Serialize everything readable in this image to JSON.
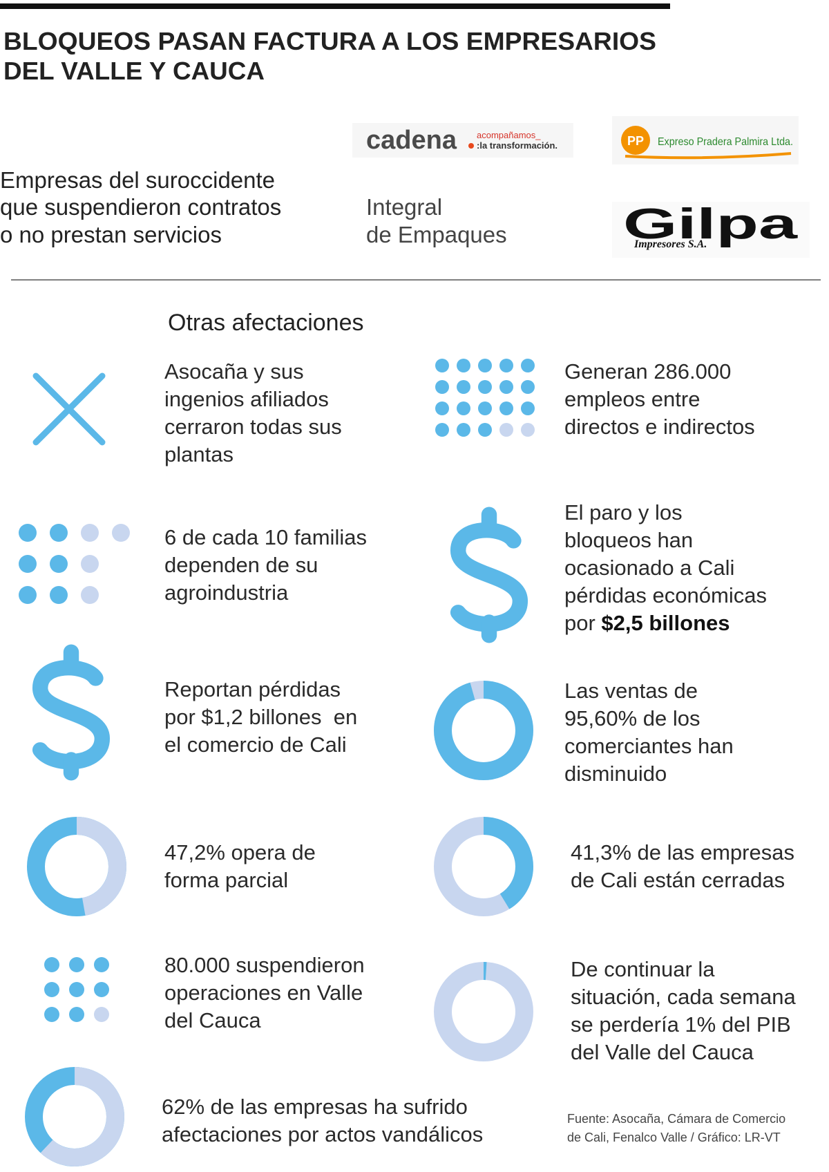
{
  "header": {
    "title_lines": [
      "BLOQUEOS PASAN FACTURA A LOS EMPRESARIOS",
      "DEL VALLE Y CAUCA"
    ]
  },
  "companies": {
    "intro_lines": [
      "Empresas del suroccidente",
      "que suspendieron contratos",
      "o no prestan servicios"
    ],
    "cadena": {
      "name": "cadena",
      "tagline_lines": [
        "acompañamos_",
        ":la transformación."
      ]
    },
    "expreso": {
      "badge": "PP",
      "name": "Expreso Pradera Palmira Ltda."
    },
    "integral_lines": [
      "Integral",
      "de Empaques"
    ],
    "gilpa": {
      "name": "Gilpa",
      "sub": "Impresores S.A."
    }
  },
  "section_title": "Otras afectaciones",
  "colors": {
    "main": "#5bb8e8",
    "light": "#c8d6ef"
  },
  "items": [
    {
      "icon": "x",
      "lines": [
        "Asocaña y sus",
        "ingenios afiliados",
        "cerraron todas sus",
        "plantas"
      ]
    },
    {
      "icon": "dots",
      "dots_filled": 18,
      "dots_total": 20,
      "lines": [
        "Generan 286.000",
        "empleos entre",
        "directos e indirectos"
      ]
    },
    {
      "icon": "dots",
      "dots_filled": 6,
      "dots_total": 10,
      "lines": [
        "6 de cada 10 familias",
        "dependen de su",
        "agroindustria"
      ]
    },
    {
      "icon": "dollar",
      "lines": [
        "El paro y los",
        "bloqueos han",
        "ocasionado a Cali",
        "pérdidas económicas"
      ],
      "emphasis_line": {
        "text": "por ",
        "bold": "$2,5 billones"
      }
    },
    {
      "icon": "dollar",
      "lines": [
        "Reportan pérdidas",
        "por $1,2 billones  en",
        "el comercio de Cali"
      ]
    },
    {
      "icon": "donut",
      "value": 95.6,
      "value_color": "#5bb8e8",
      "lines": [
        "Las ventas de",
        "95,60% de los",
        "comerciantes han",
        "disminuido"
      ]
    },
    {
      "icon": "donut",
      "value": 47.2,
      "value_color": "#c8d6ef",
      "lines": [
        "47,2% opera de",
        "forma parcial"
      ]
    },
    {
      "icon": "donut",
      "value": 41.3,
      "value_color": "#5bb8e8",
      "lines": [
        "41,3% de las empresas",
        "de Cali están cerradas"
      ]
    },
    {
      "icon": "dots",
      "dots_filled": 8,
      "dots_total": 9,
      "lines": [
        "80.000 suspendieron",
        "operaciones en Valle",
        "del Cauca"
      ]
    },
    {
      "icon": "donut",
      "value": 1,
      "value_color": "#5bb8e8",
      "lines": [
        "De continuar la",
        "situación, cada semana",
        "se perdería 1% del PIB",
        "del Valle del Cauca"
      ]
    },
    {
      "icon": "donut",
      "value": 62,
      "value_color": "#c8d6ef",
      "lines": [
        "62% de las empresas ha sufrido",
        "afectaciones por actos vandálicos"
      ]
    }
  ],
  "source_lines": [
    "Fuente: Asocaña, Cámara de Comercio",
    "de Cali, Fenalco Valle / Gráfico: LR-VT"
  ]
}
